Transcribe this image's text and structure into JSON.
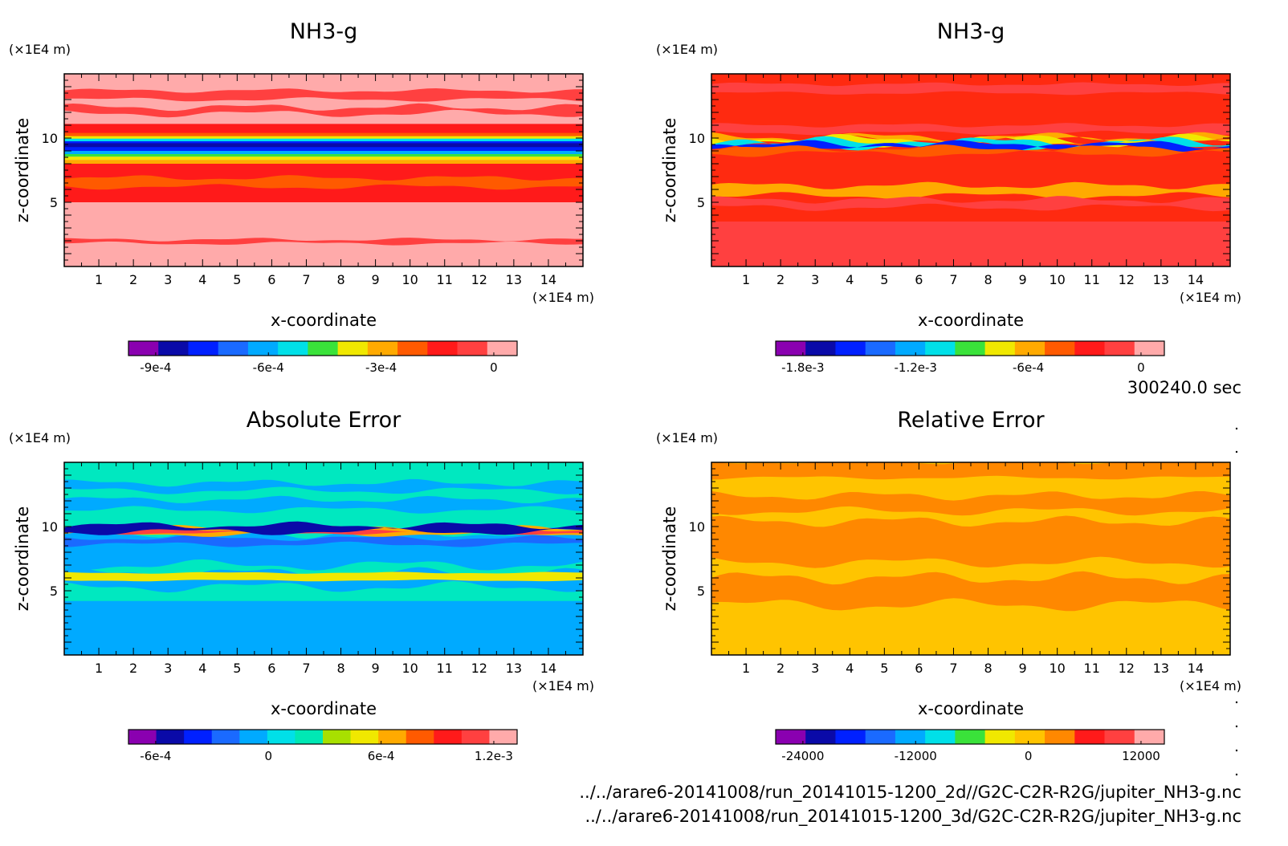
{
  "time_label": "300240.0 sec",
  "files": [
    "../../arare6-20141008/run_20141015-1200_2d//G2C-C2R-R2G/jupiter_NH3-g.nc",
    "../../arare6-20141008/run_20141015-1200_3d/G2C-C2R-R2G/jupiter_NH3-g.nc"
  ],
  "chart_data": [
    {
      "type": "heatmap",
      "title": "NH3-g",
      "xlabel": "x-coordinate",
      "ylabel": "z-coordinate",
      "xunit": "(×1E4 m)",
      "yunit": "(×1E4 m)",
      "xlim": [
        0,
        15
      ],
      "ylim": [
        0,
        15
      ],
      "xticks": [
        "1",
        "2",
        "3",
        "4",
        "5",
        "6",
        "7",
        "8",
        "9",
        "10",
        "11",
        "12",
        "13",
        "14"
      ],
      "yticks": [
        "5",
        "10"
      ],
      "colorbar": {
        "colors": [
          "#8a00b0",
          "#0a0aa8",
          "#0020ff",
          "#1a6aff",
          "#00aaff",
          "#00e0e8",
          "#3ae23a",
          "#f0e800",
          "#ffaa00",
          "#ff5a00",
          "#ff1a1a",
          "#ff4040",
          "#ffaaaa"
        ],
        "tick_labels": [
          "-9e-4",
          "-6e-4",
          "-3e-4",
          "0"
        ]
      },
      "field": {
        "background": "#ffaaaa",
        "bands": [
          {
            "z": [
              13.0,
              13.7
            ],
            "color": "#ff4040",
            "wave": 0.12
          },
          {
            "z": [
              11.9,
              12.4
            ],
            "color": "#ff4040",
            "wave": 0.2
          },
          {
            "z": [
              9.8,
              11.1
            ],
            "color": "#ff1a1a"
          },
          {
            "z": [
              10.1,
              10.4
            ],
            "color": "#ff5a00"
          },
          {
            "z": [
              9.9,
              10.15
            ],
            "color": "#f0e800"
          },
          {
            "z": [
              9.75,
              9.95
            ],
            "color": "#00e0e8"
          },
          {
            "z": [
              9.0,
              9.75
            ],
            "color": "#0020ff"
          },
          {
            "z": [
              9.3,
              9.6
            ],
            "color": "#0a0aa8"
          },
          {
            "z": [
              8.75,
              9.0
            ],
            "color": "#00aaff"
          },
          {
            "z": [
              8.55,
              8.75
            ],
            "color": "#3ae23a"
          },
          {
            "z": [
              8.3,
              8.55
            ],
            "color": "#f0e800"
          },
          {
            "z": [
              8.0,
              8.3
            ],
            "color": "#ffaa00"
          },
          {
            "z": [
              5.0,
              8.0
            ],
            "color": "#ff1a1a"
          },
          {
            "z": [
              6.2,
              6.9
            ],
            "color": "#ff5a00",
            "wave": 0.15
          },
          {
            "z": [
              5.0,
              5.6
            ],
            "color": "#ff1a1a"
          },
          {
            "z": [
              1.8,
              2.1
            ],
            "color": "#ff4040",
            "wave": 0.1
          }
        ]
      }
    },
    {
      "type": "heatmap",
      "title": "NH3-g",
      "xlabel": "x-coordinate",
      "ylabel": "z-coordinate",
      "xunit": "(×1E4 m)",
      "yunit": "(×1E4 m)",
      "xlim": [
        0,
        15
      ],
      "ylim": [
        0,
        15
      ],
      "xticks": [
        "1",
        "2",
        "3",
        "4",
        "5",
        "6",
        "7",
        "8",
        "9",
        "10",
        "11",
        "12",
        "13",
        "14"
      ],
      "yticks": [
        "5",
        "10"
      ],
      "colorbar": {
        "colors": [
          "#8a00b0",
          "#0a0aa8",
          "#0020ff",
          "#1a6aff",
          "#00aaff",
          "#00e0e8",
          "#3ae23a",
          "#f0e800",
          "#ffaa00",
          "#ff5a00",
          "#ff1a1a",
          "#ff4040",
          "#ffaaaa"
        ],
        "tick_labels": [
          "-1.8e-3",
          "-1.2e-3",
          "-6e-4",
          "0"
        ]
      },
      "field": {
        "background": "#ff2a10",
        "bands": [
          {
            "z": [
              13.5,
              14.2
            ],
            "color": "#ff4040",
            "wave": 0.1
          },
          {
            "z": [
              10.4,
              11.0
            ],
            "color": "#ff4040",
            "wave": 0.12
          },
          {
            "z": [
              9.85,
              10.1
            ],
            "color": "#ffaa00",
            "wave": 0.25
          },
          {
            "z": [
              9.65,
              9.9
            ],
            "color": "#f0e800",
            "wave": 0.3
          },
          {
            "z": [
              9.45,
              9.7
            ],
            "color": "#00e0e8",
            "wave": 0.3
          },
          {
            "z": [
              9.25,
              9.5
            ],
            "color": "#0020ff",
            "wave": 0.25
          },
          {
            "z": [
              8.8,
              9.2
            ],
            "color": "#ff5a00",
            "wave": 0.2
          },
          {
            "z": [
              5.5,
              6.3
            ],
            "color": "#ffaa00",
            "wave": 0.2
          },
          {
            "z": [
              4.6,
              5.2
            ],
            "color": "#ff4040",
            "wave": 0.2
          },
          {
            "z": [
              0.0,
              3.5
            ],
            "color": "#ff4040"
          }
        ]
      }
    },
    {
      "type": "heatmap",
      "title": "Absolute Error",
      "xlabel": "x-coordinate",
      "ylabel": "z-coordinate",
      "xunit": "(×1E4 m)",
      "yunit": "(×1E4 m)",
      "xlim": [
        0,
        15
      ],
      "ylim": [
        0,
        15
      ],
      "xticks": [
        "1",
        "2",
        "3",
        "4",
        "5",
        "6",
        "7",
        "8",
        "9",
        "10",
        "11",
        "12",
        "13",
        "14"
      ],
      "yticks": [
        "5",
        "10"
      ],
      "colorbar": {
        "colors": [
          "#8a00b0",
          "#0a0aa8",
          "#0020ff",
          "#1a6aff",
          "#00aaff",
          "#00e0e8",
          "#00e8b4",
          "#a8e000",
          "#f0e800",
          "#ffaa00",
          "#ff5a00",
          "#ff1a1a",
          "#ff4040",
          "#ffaaaa"
        ],
        "tick_labels": [
          "-6e-4",
          "0",
          "6e-4",
          "1.2e-3"
        ]
      },
      "field": {
        "background": "#00e8c0",
        "bands": [
          {
            "z": [
              0.0,
              4.2
            ],
            "color": "#00aaff"
          },
          {
            "z": [
              5.3,
              6.4
            ],
            "color": "#00aaff",
            "wave": 0.3
          },
          {
            "z": [
              7.0,
              9.5
            ],
            "color": "#00aaff",
            "wave": 0.3
          },
          {
            "z": [
              8.6,
              9.1
            ],
            "color": "#1a6aff",
            "wave": 0.15
          },
          {
            "z": [
              9.4,
              9.9
            ],
            "color": "#ffaa00",
            "wave": 0.15
          },
          {
            "z": [
              9.5,
              9.75
            ],
            "color": "#ff4040",
            "wave": 0.1
          },
          {
            "z": [
              9.6,
              10.1
            ],
            "color": "#0a0aa8",
            "wave": 0.2
          },
          {
            "z": [
              11.3,
              12.1
            ],
            "color": "#00aaff",
            "wave": 0.2
          },
          {
            "z": [
              12.8,
              13.4
            ],
            "color": "#00aaff",
            "wave": 0.2
          },
          {
            "z": [
              5.8,
              6.4
            ],
            "color": "#f0e800",
            "wave": 0.05
          }
        ]
      }
    },
    {
      "type": "heatmap",
      "title": "Relative Error",
      "xlabel": "x-coordinate",
      "ylabel": "z-coordinate",
      "xunit": "(×1E4 m)",
      "yunit": "(×1E4 m)",
      "xlim": [
        0,
        15
      ],
      "ylim": [
        0,
        15
      ],
      "xticks": [
        "1",
        "2",
        "3",
        "4",
        "5",
        "6",
        "7",
        "8",
        "9",
        "10",
        "11",
        "12",
        "13",
        "14"
      ],
      "yticks": [
        "5",
        "10"
      ],
      "colorbar": {
        "colors": [
          "#8a00b0",
          "#0a0aa8",
          "#0020ff",
          "#1a6aff",
          "#00aaff",
          "#00e0e8",
          "#3ae23a",
          "#f0e800",
          "#ffc400",
          "#ff8800",
          "#ff1a1a",
          "#ff4040",
          "#ffaaaa"
        ],
        "tick_labels": [
          "-24000",
          "-12000",
          "0",
          "12000"
        ]
      },
      "field": {
        "background": "#ffc400",
        "bands": [
          {
            "z": [
              3.9,
              6.0
            ],
            "color": "#ff8800",
            "wave": 0.35
          },
          {
            "z": [
              7.2,
              10.4
            ],
            "color": "#ff8800",
            "wave": 0.3
          },
          {
            "z": [
              11.2,
              12.4
            ],
            "color": "#ff8800",
            "wave": 0.25
          },
          {
            "z": [
              13.8,
              15.0
            ],
            "color": "#ff8800",
            "wave": 0.1
          }
        ]
      }
    }
  ]
}
